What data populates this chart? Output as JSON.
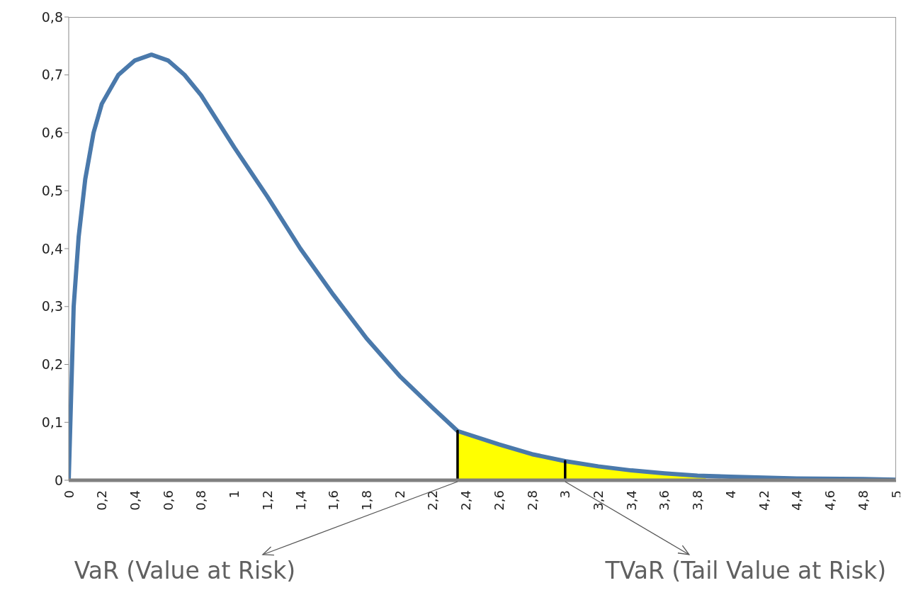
{
  "chart_data": {
    "type": "line",
    "xlim": [
      0,
      5
    ],
    "xticks": [
      0,
      {
        "value": 0.2,
        "label": "0,2"
      },
      {
        "value": 0.4,
        "label": "0,4"
      },
      {
        "value": 0.6,
        "label": "0,6"
      },
      {
        "value": 0.8,
        "label": "0,8"
      },
      1,
      {
        "value": 1.2,
        "label": "1,2"
      },
      {
        "value": 1.4,
        "label": "1,4"
      },
      {
        "value": 1.6,
        "label": "1,6"
      },
      {
        "value": 1.8,
        "label": "1,8"
      },
      2,
      {
        "value": 2.2,
        "label": "2,2"
      },
      {
        "value": 2.4,
        "label": "2,4"
      },
      {
        "value": 2.6,
        "label": "2,6"
      },
      {
        "value": 2.8,
        "label": "2,8"
      },
      3,
      {
        "value": 3.2,
        "label": "3,2"
      },
      {
        "value": 3.4,
        "label": "3,4"
      },
      {
        "value": 3.6,
        "label": "3,6"
      },
      {
        "value": 3.8,
        "label": "3,8"
      },
      4,
      {
        "value": 4.2,
        "label": "4,2"
      },
      {
        "value": 4.4,
        "label": "4,4"
      },
      {
        "value": 4.6,
        "label": "4,6"
      },
      {
        "value": 4.8,
        "label": "4,8"
      },
      5
    ],
    "ylim": [
      0,
      0.8
    ],
    "yticks": [
      0,
      {
        "value": 0.1,
        "label": "0,1"
      },
      {
        "value": 0.2,
        "label": "0,2"
      },
      {
        "value": 0.3,
        "label": "0,3"
      },
      {
        "value": 0.4,
        "label": "0,4"
      },
      {
        "value": 0.5,
        "label": "0,5"
      },
      {
        "value": 0.6,
        "label": "0,6"
      },
      {
        "value": 0.7,
        "label": "0,7"
      },
      {
        "value": 0.8,
        "label": "0,8"
      }
    ],
    "series": [
      {
        "type": "area",
        "color": "#ffff00",
        "x": [
          2.35,
          2.4,
          2.6,
          2.8,
          3.0,
          3.2,
          3.4,
          3.6,
          3.85
        ],
        "values": [
          0.085,
          0.08,
          0.062,
          0.045,
          0.033,
          0.024,
          0.017,
          0.012,
          0.008
        ]
      },
      {
        "color": "#4a79ab",
        "x": [
          0,
          0.03,
          0.06,
          0.1,
          0.15,
          0.2,
          0.3,
          0.4,
          0.5,
          0.6,
          0.7,
          0.8,
          0.9,
          1.0,
          1.2,
          1.4,
          1.6,
          1.8,
          2.0,
          2.2,
          2.35,
          2.6,
          2.8,
          3.0,
          3.2,
          3.4,
          3.6,
          3.8,
          4.0,
          4.4,
          4.8,
          5.0
        ],
        "values": [
          0,
          0.3,
          0.42,
          0.52,
          0.6,
          0.65,
          0.7,
          0.725,
          0.735,
          0.725,
          0.7,
          0.665,
          0.62,
          0.575,
          0.49,
          0.4,
          0.32,
          0.245,
          0.18,
          0.125,
          0.085,
          0.062,
          0.045,
          0.033,
          0.024,
          0.017,
          0.012,
          0.008,
          0.006,
          0.003,
          0.002,
          0.001
        ]
      },
      {
        "color": "#000000",
        "x": [
          2.35,
          2.35
        ],
        "values": [
          0,
          0.085
        ]
      },
      {
        "color": "#000000",
        "x": [
          3.0,
          3.0
        ],
        "values": [
          0,
          0.033
        ]
      }
    ],
    "annotations": [
      {
        "text": "VaR (Value at Risk)",
        "x": 2.35,
        "y": 0
      },
      {
        "text": "TVaR (Tail Value at Risk)",
        "x": 3.0,
        "y": 0
      }
    ]
  }
}
